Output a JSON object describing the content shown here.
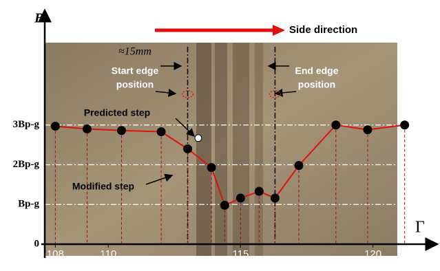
{
  "chart_data": {
    "type": "line",
    "x_label": "Γ",
    "y_label": "B",
    "xlim": [
      107.6,
      122.3
    ],
    "ylim": [
      0,
      5.8
    ],
    "xticks": [
      108,
      110,
      115,
      120
    ],
    "yticks": [
      {
        "value": 0,
        "label": "0"
      },
      {
        "value": 1,
        "label": "Bp-g"
      },
      {
        "value": 2,
        "label": "2Bp-g"
      },
      {
        "value": 3,
        "label": "3Bp-g"
      }
    ],
    "grid": true,
    "series": [
      {
        "name": "Modified step",
        "color": "#e01010",
        "x": [
          108.0,
          109.2,
          110.5,
          112.0,
          113.0,
          113.9,
          114.4,
          115.0,
          115.7,
          116.3,
          117.2,
          118.6,
          119.8,
          121.2
        ],
        "values": [
          2.97,
          2.9,
          2.86,
          2.83,
          2.4,
          1.93,
          0.98,
          1.16,
          1.33,
          1.16,
          1.98,
          3.0,
          2.88,
          3.0
        ]
      },
      {
        "name": "Predicted step",
        "color": "#ffffff",
        "x": [
          113.4
        ],
        "values": [
          2.67
        ]
      }
    ],
    "edges": {
      "start": 113.0,
      "end": 116.3
    },
    "annotations": {
      "direction": "Side direction",
      "width": "≈15mm",
      "start_edge": [
        "Start edge",
        "position"
      ],
      "end_edge": [
        "End edge",
        "position"
      ]
    }
  }
}
